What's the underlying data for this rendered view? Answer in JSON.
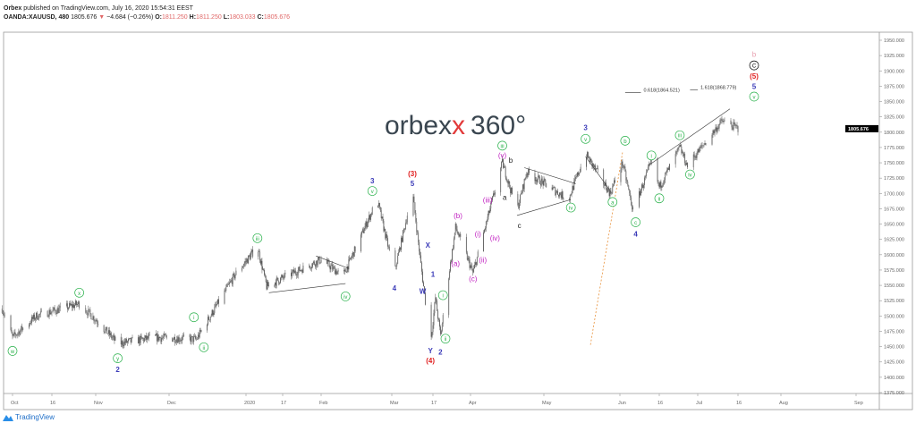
{
  "header": {
    "author": "Orbex",
    "published": "published on TradingView.com, July 16, 2020 15:54:31 EEST",
    "symbol": "OANDA:XAUUSD, 480",
    "last": "1805.676",
    "change": "−4.684 (−0.26%)",
    "o_label": "O:",
    "o": "1811.250",
    "h_label": "H:",
    "h": "1811.250",
    "l_label": "L:",
    "l": "1803.033",
    "c_label": "C:",
    "c": "1805.676"
  },
  "watermark": {
    "text": "orbex",
    "x_glyph": "x",
    "suffix": "360°"
  },
  "footer": {
    "brand": "TradingView"
  },
  "colors": {
    "candles": "#555555",
    "green": "#2bb24c",
    "blue": "#3b3bb8",
    "red": "#e02020",
    "magenta": "#c020c0",
    "pink": "#e8a0b0",
    "orange": "#e8913a",
    "down": "#e06666"
  },
  "chart_data": {
    "type": "candlestick",
    "price_axis": {
      "ticks": [
        "1950.000",
        "1925.000",
        "1900.000",
        "1875.000",
        "1850.000",
        "1825.000",
        "1800.000",
        "1775.000",
        "1750.000",
        "1725.000",
        "1700.000",
        "1675.000",
        "1650.000",
        "1625.000",
        "1600.000",
        "1575.000",
        "1550.000",
        "1525.000",
        "1500.000",
        "1475.000",
        "1450.000",
        "1425.000",
        "1400.000",
        "1375.000"
      ],
      "last_price": "1805.676",
      "range": [
        1370,
        1960
      ]
    },
    "time_axis": {
      "ticks": [
        {
          "label": "Oct",
          "date": "2019-10-01"
        },
        {
          "label": "16",
          "date": "2019-10-16"
        },
        {
          "label": "Nov",
          "date": "2019-11-01"
        },
        {
          "label": "Dec",
          "date": "2019-12-01"
        },
        {
          "label": "2020",
          "date": "2020-01-01"
        },
        {
          "label": "17",
          "date": "2020-01-17"
        },
        {
          "label": "Feb",
          "date": "2020-02-01"
        },
        {
          "label": "Mar",
          "date": "2020-03-01"
        },
        {
          "label": "17",
          "date": "2020-03-17"
        },
        {
          "label": "Apr",
          "date": "2020-04-01"
        },
        {
          "label": "May",
          "date": "2020-05-01"
        },
        {
          "label": "Jun",
          "date": "2020-06-01"
        },
        {
          "label": "16",
          "date": "2020-06-16"
        },
        {
          "label": "Jul",
          "date": "2020-07-01"
        },
        {
          "label": "16",
          "date": "2020-07-16"
        },
        {
          "label": "Aug",
          "date": "2020-08-01"
        },
        {
          "label": "Sep",
          "date": "2020-09-01"
        }
      ]
    },
    "price_path": [
      [
        "2019-09-27",
        1512
      ],
      [
        "2019-10-01",
        1465
      ],
      [
        "2019-10-10",
        1500
      ],
      [
        "2019-10-26",
        1520
      ],
      [
        "2019-11-10",
        1455
      ],
      [
        "2019-11-25",
        1465
      ],
      [
        "2019-12-12",
        1462
      ],
      [
        "2019-12-28",
        1570
      ],
      [
        "2020-01-06",
        1613
      ],
      [
        "2020-01-10",
        1548
      ],
      [
        "2020-02-01",
        1592
      ],
      [
        "2020-02-10",
        1565
      ],
      [
        "2020-02-24",
        1690
      ],
      [
        "2020-03-02",
        1570
      ],
      [
        "2020-03-09",
        1704
      ],
      [
        "2020-03-16",
        1452
      ],
      [
        "2020-03-18",
        1530
      ],
      [
        "2020-03-20",
        1468
      ],
      [
        "2020-03-26",
        1645
      ],
      [
        "2020-04-02",
        1570
      ],
      [
        "2020-04-14",
        1750
      ],
      [
        "2020-04-20",
        1672
      ],
      [
        "2020-04-24",
        1735
      ],
      [
        "2020-05-11",
        1690
      ],
      [
        "2020-05-18",
        1765
      ],
      [
        "2020-05-28",
        1700
      ],
      [
        "2020-06-02",
        1750
      ],
      [
        "2020-06-06",
        1672
      ],
      [
        "2020-06-13",
        1752
      ],
      [
        "2020-06-16",
        1710
      ],
      [
        "2020-06-24",
        1775
      ],
      [
        "2020-06-27",
        1745
      ],
      [
        "2020-07-10",
        1818
      ],
      [
        "2020-07-16",
        1806
      ]
    ],
    "wave_labels": [
      {
        "t": "w",
        "s": "circle-green",
        "d": "2019-10-01",
        "p": 1443
      },
      {
        "t": "x",
        "s": "circle-green",
        "d": "2019-10-26",
        "p": 1538
      },
      {
        "t": "y",
        "s": "circle-green",
        "d": "2019-11-10",
        "p": 1431
      },
      {
        "t": "2",
        "s": "blue",
        "d": "2019-11-10",
        "p": 1412
      },
      {
        "t": "i",
        "s": "circle-green",
        "d": "2019-12-11",
        "p": 1498
      },
      {
        "t": "ii",
        "s": "circle-green",
        "d": "2019-12-15",
        "p": 1449
      },
      {
        "t": "iii",
        "s": "circle-green",
        "d": "2020-01-06",
        "p": 1627
      },
      {
        "t": "iv",
        "s": "circle-green",
        "d": "2020-02-11",
        "p": 1532
      },
      {
        "t": "3",
        "s": "blue",
        "d": "2020-02-22",
        "p": 1720
      },
      {
        "t": "v",
        "s": "circle-green",
        "d": "2020-02-22",
        "p": 1704
      },
      {
        "t": "4",
        "s": "blue",
        "d": "2020-03-02",
        "p": 1545
      },
      {
        "t": "(3)",
        "s": "red",
        "d": "2020-03-09",
        "p": 1732
      },
      {
        "t": "5",
        "s": "blue",
        "d": "2020-03-09",
        "p": 1716
      },
      {
        "t": "X",
        "s": "blue",
        "d": "2020-03-15",
        "p": 1615
      },
      {
        "t": "1",
        "s": "blue",
        "d": "2020-03-17",
        "p": 1568
      },
      {
        "t": "W",
        "s": "blue",
        "d": "2020-03-13",
        "p": 1540
      },
      {
        "t": "Y",
        "s": "blue",
        "d": "2020-03-16",
        "p": 1443
      },
      {
        "t": "(4)",
        "s": "red",
        "d": "2020-03-16",
        "p": 1427
      },
      {
        "t": "2",
        "s": "blue",
        "d": "2020-03-20",
        "p": 1441
      },
      {
        "t": "i",
        "s": "circle-green",
        "d": "2020-03-21",
        "p": 1534
      },
      {
        "t": "ii",
        "s": "circle-green",
        "d": "2020-03-22",
        "p": 1463
      },
      {
        "t": "(b)",
        "s": "magenta",
        "d": "2020-03-27",
        "p": 1663
      },
      {
        "t": "(a)",
        "s": "magenta",
        "d": "2020-03-26",
        "p": 1585
      },
      {
        "t": "(c)",
        "s": "magenta",
        "d": "2020-04-02",
        "p": 1560
      },
      {
        "t": "(ii)",
        "s": "magenta",
        "d": "2020-04-06",
        "p": 1591
      },
      {
        "t": "(i)",
        "s": "magenta",
        "d": "2020-04-04",
        "p": 1633
      },
      {
        "t": "(iii)",
        "s": "magenta",
        "d": "2020-04-08",
        "p": 1689
      },
      {
        "t": "(iv)",
        "s": "magenta",
        "d": "2020-04-11",
        "p": 1627
      },
      {
        "t": "(v)",
        "s": "magenta",
        "d": "2020-04-14",
        "p": 1762
      },
      {
        "t": "iii",
        "s": "circle-green",
        "d": "2020-04-14",
        "p": 1778
      },
      {
        "t": "b",
        "s": "black",
        "d": "2020-04-16",
        "p": 1754
      },
      {
        "t": "a",
        "s": "black",
        "d": "2020-04-15",
        "p": 1693
      },
      {
        "t": "c",
        "s": "black",
        "d": "2020-04-21",
        "p": 1647
      },
      {
        "t": "iv",
        "s": "circle-green",
        "d": "2020-05-12",
        "p": 1677
      },
      {
        "t": "3",
        "s": "blue",
        "d": "2020-05-18",
        "p": 1807
      },
      {
        "t": "v",
        "s": "circle-green",
        "d": "2020-05-18",
        "p": 1789
      },
      {
        "t": "a",
        "s": "circle-green",
        "d": "2020-05-29",
        "p": 1686
      },
      {
        "t": "b",
        "s": "circle-green",
        "d": "2020-06-03",
        "p": 1786
      },
      {
        "t": "c",
        "s": "circle-green",
        "d": "2020-06-07",
        "p": 1653
      },
      {
        "t": "4",
        "s": "blue",
        "d": "2020-06-07",
        "p": 1633
      },
      {
        "t": "i",
        "s": "circle-green",
        "d": "2020-06-13",
        "p": 1762
      },
      {
        "t": "ii",
        "s": "circle-green",
        "d": "2020-06-16",
        "p": 1692
      },
      {
        "t": "iii",
        "s": "circle-green",
        "d": "2020-06-24",
        "p": 1795
      },
      {
        "t": "iv",
        "s": "circle-green",
        "d": "2020-06-28",
        "p": 1731
      },
      {
        "t": "b",
        "s": "pink",
        "d": "2020-07-22",
        "p": 1927
      },
      {
        "t": "C",
        "s": "circle-black",
        "d": "2020-07-22",
        "p": 1909
      },
      {
        "t": "(5)",
        "s": "red",
        "d": "2020-07-22",
        "p": 1894
      },
      {
        "t": "5",
        "s": "blue",
        "d": "2020-07-22",
        "p": 1880
      },
      {
        "t": "v",
        "s": "circle-green",
        "d": "2020-07-22",
        "p": 1861
      }
    ],
    "trendlines": [
      {
        "a": [
          "2020-01-11",
          1538
        ],
        "b": [
          "2020-02-11",
          1553
        ],
        "style": "solid"
      },
      {
        "a": [
          "2020-01-30",
          1598
        ],
        "b": [
          "2020-02-12",
          1578
        ],
        "style": "solid"
      },
      {
        "a": [
          "2020-04-20",
          1664
        ],
        "b": [
          "2020-05-12",
          1690
        ],
        "style": "solid"
      },
      {
        "a": [
          "2020-04-23",
          1742
        ],
        "b": [
          "2020-05-14",
          1716
        ],
        "style": "solid"
      },
      {
        "a": [
          "2020-05-18",
          1760
        ],
        "b": [
          "2020-05-28",
          1705
        ],
        "style": "solid"
      },
      {
        "a": [
          "2020-06-12",
          1746
        ],
        "b": [
          "2020-07-13",
          1838
        ],
        "style": "solid"
      },
      {
        "a": [
          "2020-05-20",
          1453
        ],
        "b": [
          "2020-06-02",
          1767
        ],
        "style": "dotted"
      }
    ],
    "fib_levels": [
      {
        "text": "0.618(1864.521)",
        "d1": "2020-06-03",
        "d2": "2020-06-09",
        "p": 1864.521
      },
      {
        "text": "1.618(1868.779)",
        "d1": "2020-06-28",
        "d2": "2020-07-01",
        "p": 1868.779
      }
    ]
  }
}
